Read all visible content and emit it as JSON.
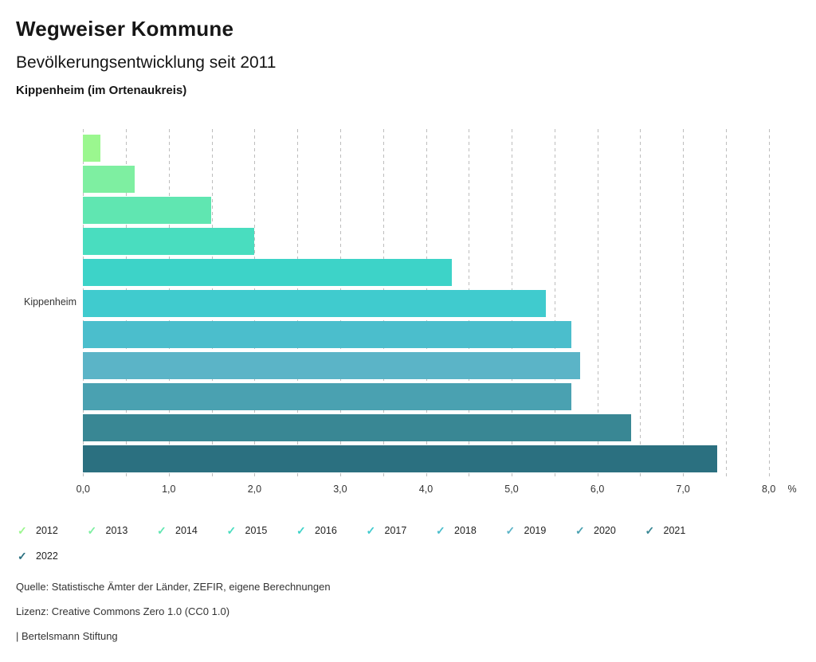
{
  "header": {
    "title": "Wegweiser Kommune",
    "subtitle": "Bevölkerungsentwicklung seit 2011",
    "region": "Kippenheim (im Ortenaukreis)"
  },
  "chart_data": {
    "type": "bar",
    "orientation": "horizontal",
    "title": "Bevölkerungsentwicklung seit 2011",
    "subtitle": "Kippenheim (im Ortenaukreis)",
    "category_label": "Kippenheim",
    "unit": "%",
    "xlim": [
      0,
      8
    ],
    "gridline_step": 0.5,
    "grid_style": "dashed",
    "legend_position": "bottom",
    "series": [
      {
        "name": "2012",
        "value": 0.2,
        "color": "#9bf78f"
      },
      {
        "name": "2013",
        "value": 0.6,
        "color": "#7eefa1"
      },
      {
        "name": "2014",
        "value": 1.5,
        "color": "#60e6b1"
      },
      {
        "name": "2015",
        "value": 2.0,
        "color": "#49ddbf"
      },
      {
        "name": "2016",
        "value": 4.3,
        "color": "#3dd3c8"
      },
      {
        "name": "2017",
        "value": 5.4,
        "color": "#40cbce"
      },
      {
        "name": "2018",
        "value": 5.7,
        "color": "#4bbecc"
      },
      {
        "name": "2019",
        "value": 5.8,
        "color": "#5bb4c7"
      },
      {
        "name": "2020",
        "value": 5.7,
        "color": "#4aa1b1"
      },
      {
        "name": "2021",
        "value": 6.4,
        "color": "#398794"
      },
      {
        "name": "2022",
        "value": 7.4,
        "color": "#2b7080"
      }
    ],
    "x_ticks": [
      {
        "value": 0,
        "label": "0,0"
      },
      {
        "value": 1,
        "label": "1,0"
      },
      {
        "value": 2,
        "label": "2,0"
      },
      {
        "value": 3,
        "label": "3,0"
      },
      {
        "value": 4,
        "label": "4,0"
      },
      {
        "value": 5,
        "label": "5,0"
      },
      {
        "value": 6,
        "label": "6,0"
      },
      {
        "value": 7,
        "label": "7,0"
      },
      {
        "value": 8,
        "label": "8,0"
      }
    ]
  },
  "legend": {
    "check_glyph": "✓"
  },
  "footer": {
    "source": "Quelle: Statistische Ämter der Länder, ZEFIR, eigene Berechnungen",
    "license": "Lizenz: Creative Commons Zero 1.0 (CC0 1.0)",
    "brand": "| Bertelsmann Stiftung"
  }
}
